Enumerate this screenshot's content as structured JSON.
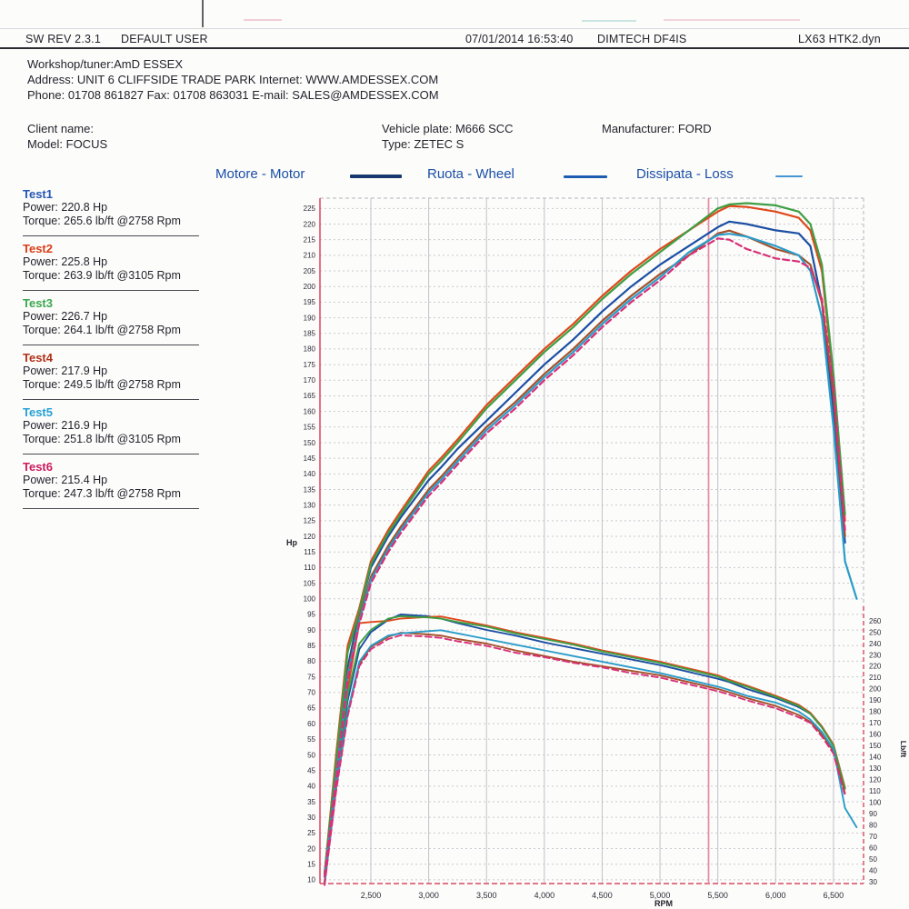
{
  "header": {
    "sw_rev": "SW REV 2.3.1",
    "user": "DEFAULT USER",
    "datetime": "07/01/2014 16:53:40",
    "device": "DIMTECH DF4IS",
    "file": "LX63 HTK2.dyn"
  },
  "workshop": {
    "line1": "Workshop/tuner:AmD ESSEX",
    "line2": "Address: UNIT 6 CLIFFSIDE TRADE PARK Internet: WWW.AMDESSEX.COM",
    "line3": "Phone: 01708 861827 Fax: 01708 863031 E-mail: SALES@AMDESSEX.COM"
  },
  "client": {
    "name": "Client name:",
    "model": "Model: FOCUS",
    "plate": "Vehicle plate: M666 SCC",
    "type": "Type: ZETEC S",
    "manufacturer": "Manufacturer: FORD"
  },
  "legend": {
    "items": [
      {
        "label": "Motore - Motor",
        "color": "#16386e"
      },
      {
        "label": "Ruota - Wheel",
        "color": "#1d5cb0"
      },
      {
        "label": "Dissipata - Loss",
        "color": "#4694d4"
      }
    ]
  },
  "tests": [
    {
      "name": "Test1",
      "color": "#2456b4",
      "power": "Power: 220.8 Hp",
      "torque": "Torque: 265.6 lb/ft @2758 Rpm"
    },
    {
      "name": "Test2",
      "color": "#d93d18",
      "power": "Power: 225.8 Hp",
      "torque": "Torque: 263.9 lb/ft @3105 Rpm"
    },
    {
      "name": "Test3",
      "color": "#3aa74e",
      "power": "Power: 226.7 Hp",
      "torque": "Torque: 264.1 lb/ft @2758 Rpm"
    },
    {
      "name": "Test4",
      "color": "#b23018",
      "power": "Power: 217.9 Hp",
      "torque": "Torque: 249.5 lb/ft @2758 Rpm"
    },
    {
      "name": "Test5",
      "color": "#26a0d6",
      "power": "Power: 216.9 Hp",
      "torque": "Torque: 251.8 lb/ft @3105 Rpm"
    },
    {
      "name": "Test6",
      "color": "#cc1a5e",
      "power": "Power: 215.4 Hp",
      "torque": "Torque: 247.3 lb/ft @2758 Rpm"
    }
  ],
  "chart_data": {
    "type": "line",
    "xlabel": "RPM",
    "ylabel_left": "Hp",
    "ylabel_right": "Lb/ft",
    "x_tick_values": [
      2500,
      3000,
      3500,
      4000,
      4500,
      5000,
      5500,
      6000,
      6500
    ],
    "x_tick_labels": [
      "2,500",
      "3,000",
      "3,500",
      "4,000",
      "4,500",
      "5,000",
      "5,500",
      "6,000",
      "6,500"
    ],
    "x_range": [
      2060,
      6760
    ],
    "hp_axis": {
      "min": 8.8,
      "max": 228.3,
      "tick_min": 10,
      "tick_max": 225,
      "tick_step": 5
    },
    "lbft_axis": {
      "min": 28.4,
      "max": 632.7,
      "tick_min": 30,
      "tick_max": 260,
      "tick_step": 10
    },
    "marker_rpm": 5420,
    "grid": true,
    "rpm": [
      2100,
      2200,
      2300,
      2400,
      2500,
      2650,
      2758,
      3000,
      3105,
      3250,
      3500,
      3750,
      4000,
      4250,
      4500,
      4750,
      5000,
      5250,
      5500,
      5600,
      5750,
      6000,
      6200,
      6300,
      6400,
      6500,
      6600,
      6700
    ],
    "series": [
      {
        "name": "Test1",
        "color": "#1c4fa4",
        "dash": false,
        "power": [
          12,
          45,
          78,
          96,
          110,
          120,
          126,
          138,
          142,
          148,
          157,
          166,
          175,
          183,
          192,
          200,
          207,
          213,
          219,
          220.8,
          220,
          218,
          217,
          213,
          195,
          160,
          118,
          null
        ],
        "torque": [
          30,
          120,
          190,
          235,
          250,
          261,
          265.6,
          264,
          262,
          258,
          252,
          247,
          241,
          236,
          231,
          226,
          221,
          215,
          209,
          206,
          200,
          192,
          184,
          178,
          166,
          150,
          112,
          null
        ]
      },
      {
        "name": "Test2",
        "color": "#de4a1c",
        "dash": false,
        "power": [
          12,
          50,
          85,
          97,
          112,
          122,
          128,
          141,
          145,
          151,
          162,
          171,
          180,
          188,
          197,
          205,
          212,
          218,
          224,
          225.8,
          225.5,
          224,
          222,
          218,
          205,
          170,
          125,
          null
        ],
        "torque": [
          30,
          125,
          200,
          258,
          259,
          260,
          262,
          263.5,
          263.9,
          261,
          256,
          250,
          245,
          240,
          234,
          229,
          224,
          218,
          212,
          208,
          203,
          194,
          186,
          179,
          167,
          151,
          113,
          null
        ]
      },
      {
        "name": "Test3",
        "color": "#3f9e44",
        "dash": false,
        "power": [
          12,
          48,
          83,
          96,
          111,
          121,
          127,
          140,
          144,
          150,
          161,
          170,
          179,
          187,
          196,
          204,
          211,
          218,
          225,
          226.3,
          226.7,
          226,
          224,
          220,
          207,
          172,
          127,
          null
        ],
        "torque": [
          30,
          122,
          195,
          240,
          252,
          262,
          264.1,
          263,
          262,
          259,
          255,
          249,
          244,
          239,
          233,
          228,
          223,
          217,
          211,
          207,
          202,
          193,
          185,
          178,
          166,
          150,
          112,
          null
        ]
      },
      {
        "name": "Test4",
        "color": "#a4512a",
        "dash": false,
        "power": [
          11,
          44,
          76,
          94,
          107,
          117,
          123,
          135,
          139,
          145,
          155,
          163,
          172,
          180,
          189,
          197,
          204,
          210,
          217,
          217.9,
          216,
          212,
          210,
          207,
          195,
          165,
          120,
          null
        ],
        "torque": [
          28,
          112,
          178,
          222,
          237,
          246,
          249.5,
          248,
          247,
          244,
          240,
          234,
          229,
          224,
          220,
          216,
          212,
          206,
          200,
          197,
          192,
          185,
          177,
          171,
          160,
          145,
          108,
          null
        ]
      },
      {
        "name": "Test5",
        "color": "#2a9cca",
        "dash": false,
        "power": [
          11,
          43,
          75,
          93,
          106,
          116,
          122,
          134,
          138,
          144,
          154,
          162,
          171,
          179,
          188,
          196,
          203,
          211,
          216.5,
          216.9,
          216,
          213,
          210,
          205,
          190,
          155,
          112,
          100
        ],
        "torque": [
          28,
          113,
          180,
          224,
          238,
          247,
          249,
          251,
          251.8,
          249,
          244,
          239,
          234,
          229,
          224,
          219,
          214,
          208,
          202,
          199,
          194,
          188,
          180,
          173,
          162,
          147,
          95,
          78
        ]
      },
      {
        "name": "Test6",
        "color": "#d82f78",
        "dash": true,
        "power": [
          11,
          42,
          74,
          92,
          105,
          115,
          121,
          133,
          137,
          143,
          153,
          161,
          170,
          178,
          187,
          195,
          202,
          210,
          215.4,
          215,
          212,
          209,
          208,
          206,
          196,
          168,
          122,
          null
        ],
        "torque": [
          27,
          110,
          176,
          220,
          235,
          244,
          247.3,
          246,
          245,
          242,
          238,
          232,
          228,
          223,
          219,
          214,
          210,
          204,
          198,
          195,
          190,
          183,
          175,
          170,
          158,
          143,
          106,
          null
        ]
      }
    ]
  }
}
